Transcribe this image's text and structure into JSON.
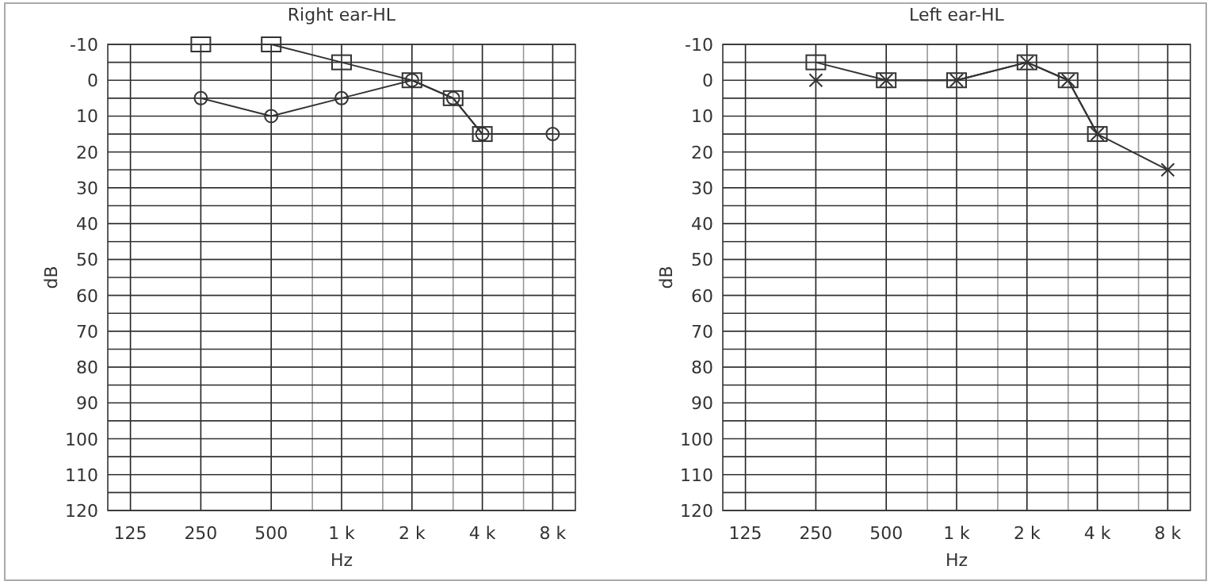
{
  "chart_data": [
    {
      "type": "line",
      "title": "Right ear-HL",
      "xlabel": "Hz",
      "ylabel": "dB",
      "log": "x",
      "grid": true,
      "xlim": [
        100,
        10000
      ],
      "xticks": [
        125,
        250,
        500,
        {
          "value": 750,
          "label": null
        },
        {
          "value": 1000,
          "label": "1 k"
        },
        {
          "value": 1500,
          "label": null
        },
        {
          "value": 2000,
          "label": "2 k"
        },
        {
          "value": 3000,
          "label": null
        },
        {
          "value": 4000,
          "label": "4 k"
        },
        {
          "value": 6000,
          "label": null
        },
        {
          "value": 8000,
          "label": "8 k"
        }
      ],
      "ylim": [
        120,
        -10
      ],
      "yticks": [
        -10,
        {
          "value": -5,
          "label": null
        },
        0,
        {
          "value": 5,
          "label": null
        },
        10,
        {
          "value": 15,
          "label": null
        },
        20,
        {
          "value": 25,
          "label": null
        },
        30,
        {
          "value": 35,
          "label": null
        },
        40,
        {
          "value": 45,
          "label": null
        },
        50,
        {
          "value": 55,
          "label": null
        },
        60,
        {
          "value": 65,
          "label": null
        },
        70,
        {
          "value": 75,
          "label": null
        },
        80,
        {
          "value": 85,
          "label": null
        },
        90,
        {
          "value": 95,
          "label": null
        },
        100,
        {
          "value": 105,
          "label": null
        },
        110,
        {
          "value": 115,
          "label": null
        },
        120
      ],
      "series": [
        {
          "color": "#333333",
          "marker": "circle",
          "x": [
            250,
            500,
            1000,
            2000,
            3000,
            4000,
            8000
          ],
          "values": [
            5,
            10,
            5,
            0,
            5,
            15,
            15
          ]
        },
        {
          "color": "#333333",
          "marker": "square",
          "x": [
            250,
            500,
            1000,
            2000,
            3000,
            4000
          ],
          "values": [
            -10,
            -10,
            -5,
            0,
            5,
            15
          ]
        }
      ]
    },
    {
      "type": "line",
      "title": "Left ear-HL",
      "xlabel": "Hz",
      "ylabel": "dB",
      "log": "x",
      "grid": true,
      "xlim": [
        100,
        10000
      ],
      "xticks": [
        125,
        250,
        500,
        {
          "value": 750,
          "label": null
        },
        {
          "value": 1000,
          "label": "1 k"
        },
        {
          "value": 1500,
          "label": null
        },
        {
          "value": 2000,
          "label": "2 k"
        },
        {
          "value": 3000,
          "label": null
        },
        {
          "value": 4000,
          "label": "4 k"
        },
        {
          "value": 6000,
          "label": null
        },
        {
          "value": 8000,
          "label": "8 k"
        }
      ],
      "ylim": [
        120,
        -10
      ],
      "yticks": [
        -10,
        {
          "value": -5,
          "label": null
        },
        0,
        {
          "value": 5,
          "label": null
        },
        10,
        {
          "value": 15,
          "label": null
        },
        20,
        {
          "value": 25,
          "label": null
        },
        30,
        {
          "value": 35,
          "label": null
        },
        40,
        {
          "value": 45,
          "label": null
        },
        50,
        {
          "value": 55,
          "label": null
        },
        60,
        {
          "value": 65,
          "label": null
        },
        70,
        {
          "value": 75,
          "label": null
        },
        80,
        {
          "value": 85,
          "label": null
        },
        90,
        {
          "value": 95,
          "label": null
        },
        100,
        {
          "value": 105,
          "label": null
        },
        110,
        {
          "value": 115,
          "label": null
        },
        120
      ],
      "series": [
        {
          "color": "#333333",
          "marker": "cross",
          "x": [
            250,
            500,
            1000,
            2000,
            3000,
            4000,
            8000
          ],
          "values": [
            0,
            0,
            0,
            -5,
            0,
            15,
            25
          ]
        },
        {
          "color": "#333333",
          "marker": "square",
          "x": [
            250,
            500,
            1000,
            2000,
            3000,
            4000
          ],
          "values": [
            -5,
            0,
            0,
            -5,
            0,
            15
          ]
        }
      ]
    }
  ]
}
